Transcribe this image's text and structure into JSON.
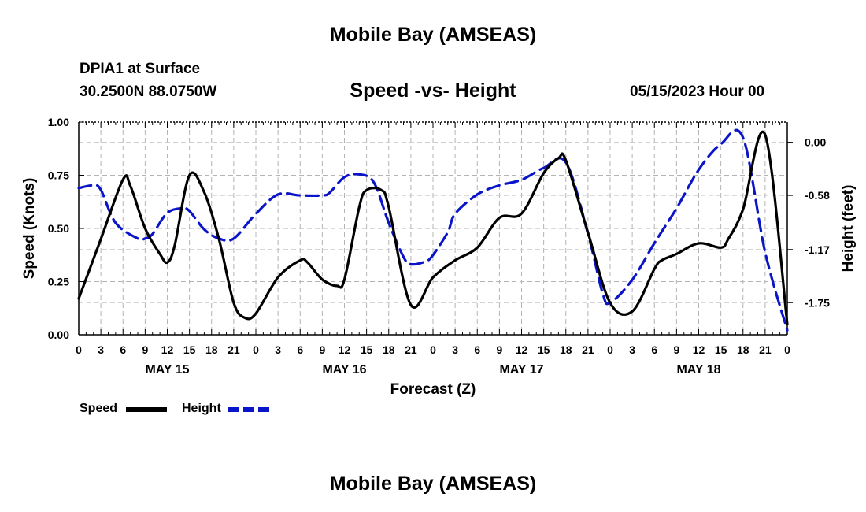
{
  "page": {
    "title_top": "Mobile Bay (AMSEAS)",
    "title_bottom": "Mobile Bay (AMSEAS)",
    "station": "DPIA1 at Surface",
    "coords": "30.2500N  88.0750W",
    "chart_title": "Speed -vs- Height",
    "date": "05/15/2023 Hour 00"
  },
  "legend": {
    "speed_label": "Speed",
    "height_label": "Height"
  },
  "chart_data": {
    "type": "line",
    "title": "Speed -vs- Height",
    "xlabel": "Forecast (Z)",
    "ylabel": "Speed (Knots)",
    "y2label": "Height (feet)",
    "x_range": [
      0,
      96
    ],
    "ylim": [
      0,
      1
    ],
    "y2lim": [
      -2.1,
      0.22
    ],
    "x_ticks": [
      0,
      3,
      6,
      9,
      12,
      15,
      18,
      21,
      24,
      27,
      30,
      33,
      36,
      39,
      42,
      45,
      48,
      51,
      54,
      57,
      60,
      63,
      66,
      69,
      72,
      75,
      78,
      81,
      84,
      87,
      90,
      93,
      96
    ],
    "x_tick_labels": [
      "0",
      "3",
      "6",
      "9",
      "12",
      "15",
      "18",
      "21",
      "0",
      "3",
      "6",
      "9",
      "12",
      "15",
      "18",
      "21",
      "0",
      "3",
      "6",
      "9",
      "12",
      "15",
      "18",
      "21",
      "0",
      "3",
      "6",
      "9",
      "12",
      "15",
      "18",
      "21",
      "0"
    ],
    "day_labels": [
      {
        "x": 12,
        "label": "MAY 15"
      },
      {
        "x": 36,
        "label": "MAY 16"
      },
      {
        "x": 60,
        "label": "MAY 17"
      },
      {
        "x": 84,
        "label": "MAY 18"
      }
    ],
    "y_ticks": [
      0,
      0.25,
      0.5,
      0.75,
      1.0
    ],
    "y_tick_labels": [
      "0.00",
      "0.25",
      "0.50",
      "0.75",
      "1.00"
    ],
    "y2_ticks": [
      0.0,
      -0.58,
      -1.17,
      -1.75
    ],
    "y2_tick_labels": [
      "0.00",
      "-0.58",
      "-1.17",
      "-1.75"
    ],
    "series": [
      {
        "name": "Speed",
        "axis": "left",
        "color": "#000000",
        "dash": "solid",
        "x": [
          0,
          3,
          6,
          7,
          9,
          11,
          12,
          13,
          15,
          17,
          19,
          21,
          22.5,
          24,
          27,
          30,
          31,
          33,
          35,
          36,
          38,
          39,
          41,
          42,
          45,
          48,
          51,
          54,
          57,
          60,
          63,
          65,
          66,
          69,
          72,
          75,
          78,
          79,
          81,
          84,
          87,
          88,
          90,
          93,
          96
        ],
        "y": [
          0.17,
          0.45,
          0.73,
          0.7,
          0.5,
          0.38,
          0.34,
          0.42,
          0.75,
          0.67,
          0.45,
          0.15,
          0.08,
          0.1,
          0.27,
          0.35,
          0.34,
          0.26,
          0.23,
          0.26,
          0.6,
          0.68,
          0.68,
          0.6,
          0.14,
          0.27,
          0.35,
          0.41,
          0.55,
          0.57,
          0.76,
          0.83,
          0.82,
          0.48,
          0.15,
          0.11,
          0.31,
          0.35,
          0.38,
          0.43,
          0.41,
          0.45,
          0.59,
          0.94,
          0.05
        ]
      },
      {
        "name": "Height",
        "axis": "right",
        "color": "#0a14c8",
        "dash": "dashed",
        "x": [
          0,
          2,
          3,
          5,
          8,
          9,
          10,
          12,
          14,
          15,
          17,
          19,
          21,
          24,
          27,
          30,
          33,
          34,
          36,
          38,
          40,
          42,
          44,
          45,
          47,
          48,
          50,
          51,
          54,
          57,
          60,
          63,
          66,
          69,
          71,
          72,
          75,
          78,
          81,
          84,
          87,
          90,
          93,
          96
        ],
        "y": [
          -0.5,
          -0.47,
          -0.52,
          -0.88,
          -1.05,
          -1.05,
          -1.0,
          -0.77,
          -0.72,
          -0.75,
          -0.95,
          -1.05,
          -1.05,
          -0.78,
          -0.57,
          -0.58,
          -0.58,
          -0.55,
          -0.38,
          -0.35,
          -0.44,
          -0.88,
          -1.25,
          -1.33,
          -1.3,
          -1.23,
          -0.98,
          -0.78,
          -0.57,
          -0.47,
          -0.41,
          -0.28,
          -0.22,
          -1.0,
          -1.65,
          -1.75,
          -1.5,
          -1.1,
          -0.72,
          -0.3,
          -0.02,
          0.05,
          -1.2,
          -2.05
        ]
      }
    ]
  }
}
